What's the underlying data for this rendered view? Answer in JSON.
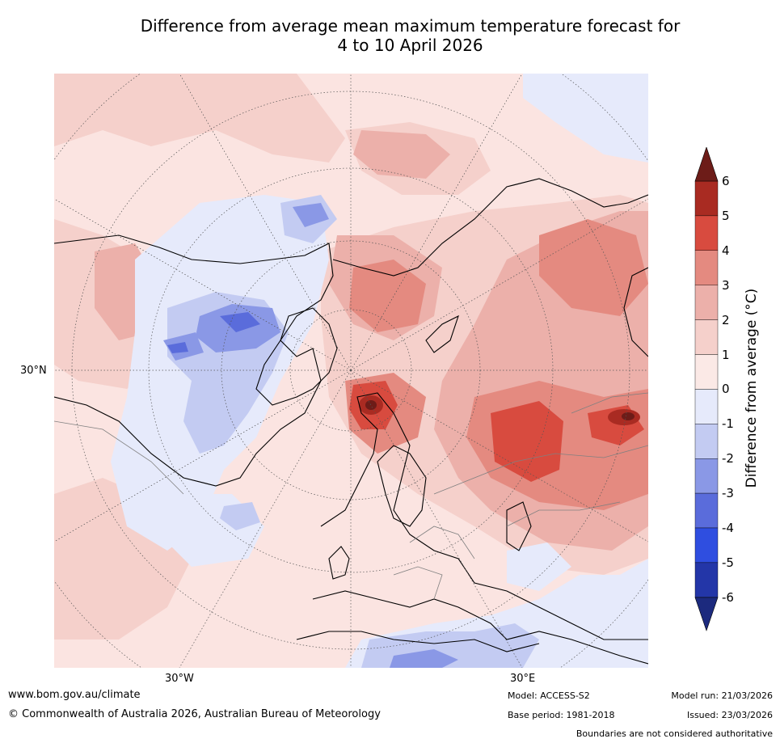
{
  "title_line1": "Difference from average mean maximum temperature forecast for",
  "title_line2": "4 to 10 April 2026",
  "map": {
    "lat_label": "30°N",
    "lon_label_west": "30°W",
    "lon_label_east": "30°E",
    "palette": {
      "plus_0_1": "#fbe9e6",
      "plus_1_2": "#f5d0cb",
      "plus_2_3": "#ecb0aa",
      "plus_3_4": "#e48a80",
      "plus_4_5": "#d84b3f",
      "plus_5_6": "#a92b22",
      "plus_6": "#6d1c18",
      "minus_0_1": "#e6eafb",
      "minus_1_2": "#c3cbf2",
      "minus_2_3": "#8a98e6",
      "minus_3_4": "#5a6cdb",
      "minus_4_5": "#2f4ee0",
      "minus_5_6": "#2336a8",
      "minus_6": "#1c2a7e"
    }
  },
  "colorbar": {
    "label": "Difference from average (°C)",
    "ticks": [
      "6",
      "5",
      "4",
      "3",
      "2",
      "1",
      "0",
      "-1",
      "-2",
      "-3",
      "-4",
      "-5",
      "-6"
    ],
    "colors": [
      "#a92b22",
      "#d84b3f",
      "#e48a80",
      "#ecb0aa",
      "#f5d0cb",
      "#fbe9e6",
      "#e6eafb",
      "#c3cbf2",
      "#8a98e6",
      "#5a6cdb",
      "#2f4ee0",
      "#2336a8"
    ],
    "top_arrow_color": "#6d1c18",
    "bottom_arrow_color": "#1c2a7e"
  },
  "footer": {
    "website": "www.bom.gov.au/climate",
    "copyright": "© Commonwealth of Australia 2026, Australian Bureau of Meteorology",
    "model": "Model: ACCESS-S2",
    "base_period": "Base period: 1981-2018",
    "model_run": "Model run: 21/03/2026",
    "issued": "Issued: 23/03/2026",
    "disclaimer": "Boundaries are not considered authoritative"
  }
}
